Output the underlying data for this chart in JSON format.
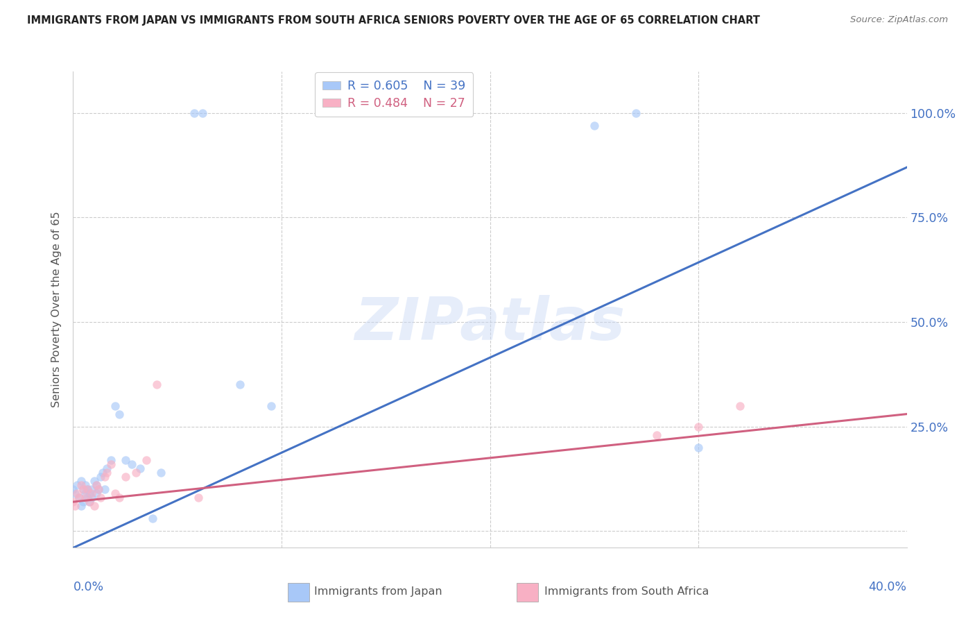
{
  "title": "IMMIGRANTS FROM JAPAN VS IMMIGRANTS FROM SOUTH AFRICA SENIORS POVERTY OVER THE AGE OF 65 CORRELATION CHART",
  "source": "Source: ZipAtlas.com",
  "ylabel": "Seniors Poverty Over the Age of 65",
  "watermark": "ZIPatlas",
  "japan_color": "#a8c8f8",
  "japan_line_color": "#4472c4",
  "sa_color": "#f8b0c4",
  "sa_line_color": "#d06080",
  "japan_R": 0.605,
  "japan_N": 39,
  "sa_R": 0.484,
  "sa_N": 27,
  "legend_japan": "Immigrants from Japan",
  "legend_sa": "Immigrants from South Africa",
  "japan_x": [
    0.0,
    0.001,
    0.002,
    0.003,
    0.004,
    0.004,
    0.005,
    0.005,
    0.006,
    0.006,
    0.007,
    0.007,
    0.008,
    0.008,
    0.009,
    0.009,
    0.01,
    0.011,
    0.011,
    0.012,
    0.013,
    0.014,
    0.015,
    0.016,
    0.018,
    0.02,
    0.022,
    0.025,
    0.028,
    0.032,
    0.038,
    0.042,
    0.058,
    0.062,
    0.25,
    0.27,
    0.08,
    0.095,
    0.3
  ],
  "japan_y": [
    0.1,
    0.09,
    0.11,
    0.08,
    0.12,
    0.06,
    0.1,
    0.07,
    0.09,
    0.11,
    0.08,
    0.1,
    0.09,
    0.07,
    0.1,
    0.08,
    0.12,
    0.09,
    0.11,
    0.1,
    0.13,
    0.14,
    0.1,
    0.15,
    0.17,
    0.3,
    0.28,
    0.17,
    0.16,
    0.15,
    0.03,
    0.14,
    1.0,
    1.0,
    0.97,
    1.0,
    0.35,
    0.3,
    0.2
  ],
  "sa_x": [
    0.0,
    0.001,
    0.002,
    0.003,
    0.004,
    0.005,
    0.006,
    0.007,
    0.008,
    0.009,
    0.01,
    0.011,
    0.012,
    0.013,
    0.015,
    0.016,
    0.018,
    0.02,
    0.022,
    0.025,
    0.03,
    0.035,
    0.04,
    0.06,
    0.28,
    0.3,
    0.32
  ],
  "sa_y": [
    0.07,
    0.06,
    0.09,
    0.08,
    0.11,
    0.1,
    0.08,
    0.1,
    0.07,
    0.09,
    0.06,
    0.11,
    0.1,
    0.08,
    0.13,
    0.14,
    0.16,
    0.09,
    0.08,
    0.13,
    0.14,
    0.17,
    0.35,
    0.08,
    0.23,
    0.25,
    0.3
  ],
  "japan_line_x0": 0.0,
  "japan_line_y0": -0.04,
  "japan_line_x1": 0.4,
  "japan_line_y1": 0.87,
  "sa_line_x0": 0.0,
  "sa_line_y0": 0.07,
  "sa_line_x1": 0.4,
  "sa_line_y1": 0.28,
  "marker_size": 80,
  "background_color": "#ffffff",
  "grid_color": "#cccccc",
  "axis_color": "#4472c4",
  "xlim": [
    0.0,
    0.4
  ],
  "ylim": [
    -0.04,
    1.1
  ],
  "ytick_vals": [
    0.0,
    0.25,
    0.5,
    0.75,
    1.0
  ],
  "ytick_labels_right": [
    "",
    "25.0%",
    "50.0%",
    "75.0%",
    "100.0%"
  ],
  "xtick_vals": [
    0.0,
    0.1,
    0.2,
    0.3,
    0.4
  ]
}
